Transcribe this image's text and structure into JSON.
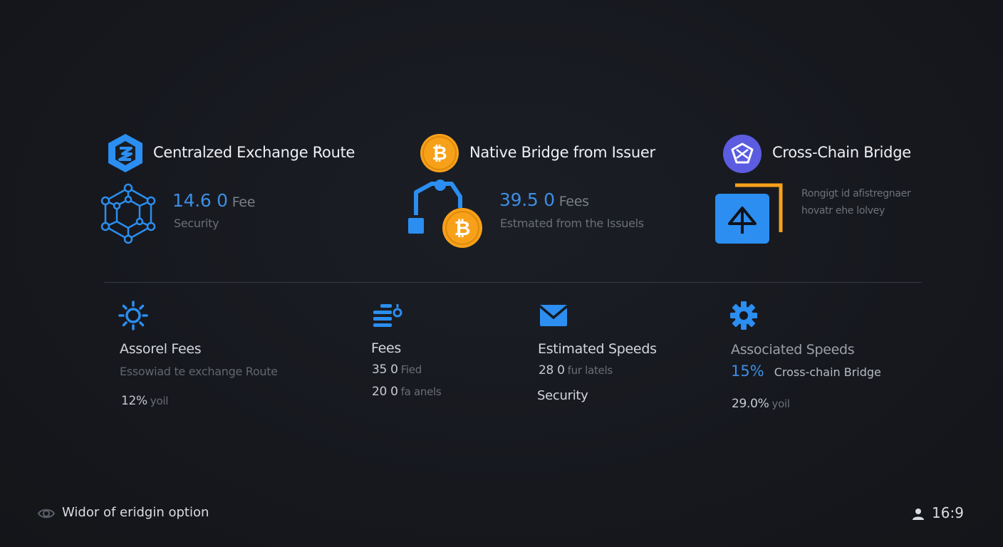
{
  "routes": [
    {
      "title": "Centralzed Exchange Route",
      "value": "14.6 0",
      "unit": "Fee",
      "sub": "Security",
      "icon": "hexagon-logo-icon",
      "graphic": "network-nodes-icon"
    },
    {
      "title": "Native Bridge from Issuer",
      "value": "39.5 0",
      "unit": "Fees",
      "sub": "Estmated from the Issuels",
      "icon": "bitcoin-icon",
      "graphic": "bridge-bitcoin-icon"
    },
    {
      "title": "Cross-Chain Bridge",
      "lines": [
        "Rongigt id afistregnaer",
        "hovatr ehe lolvey"
      ],
      "icon": "cross-chain-logo-icon",
      "graphic": "bridge-arrow-icon"
    }
  ],
  "stats": [
    {
      "icon": "sun-icon",
      "title": "Assorel Fees",
      "sub": "Essowiad te exchange Route",
      "line": {
        "value": "12%",
        "unit": "yoil"
      }
    },
    {
      "icon": "list-settings-icon",
      "title": "Fees",
      "lines": [
        {
          "value": "35 0",
          "unit": "Fied"
        },
        {
          "value": "20 0",
          "unit": "fa anels"
        }
      ]
    },
    {
      "icon": "mail-icon",
      "title": "Estimated Speeds",
      "lines": [
        {
          "value": "28 0",
          "unit": "fur latels"
        }
      ],
      "extra": "Security"
    },
    {
      "icon": "gear-icon",
      "title": "Associated Speeds",
      "highlight": {
        "value": "15%",
        "label": "Cross-chain Bridge"
      },
      "line": {
        "value": "29.0%",
        "unit": "yoil"
      }
    }
  ],
  "footer": {
    "left_label": "Widor of eridgin option",
    "right_label": "16:9",
    "left_icon": "eye-icon",
    "right_icon": "user-icon"
  },
  "colors": {
    "accent": "#3d8ee6",
    "bitcoin": "#f7a11a",
    "bridge_purple": "#5b5ce0",
    "background": "#16181e"
  }
}
